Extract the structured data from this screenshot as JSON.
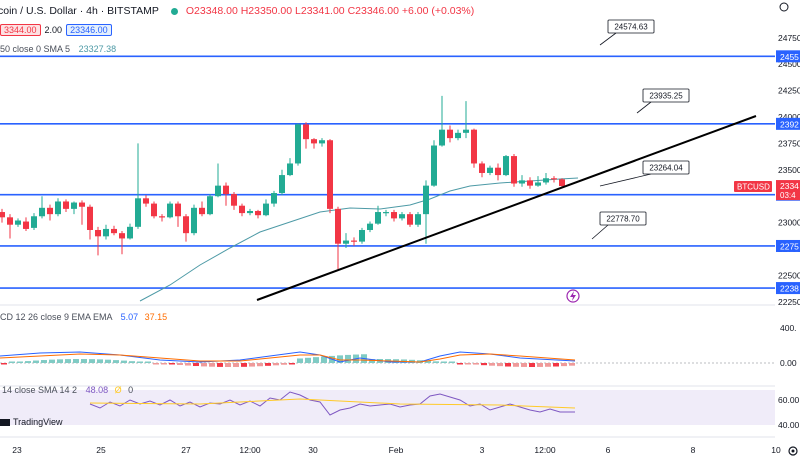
{
  "header": {
    "symbol": "coin / U.S. Dollar · 4h · BITSTAMP",
    "ohlc": "O23348.00 H23350.00 L23341.00 C23346.00 +6.00 (+0.03%)",
    "sell_price": "3344.00",
    "spread": "2.00",
    "buy_price": "23346.00",
    "sma_label": "50 close 0 SMA 5",
    "sma_value": "23327.38"
  },
  "chart_data": {
    "type": "candlestick",
    "symbol": "BTCUSD",
    "interval": "4h",
    "price_axis_ticks": [
      "24750",
      "24500",
      "24250",
      "24000",
      "23750",
      "23500",
      "23250",
      "23000",
      "22750",
      "22500",
      "22250"
    ],
    "time_axis_ticks": [
      "23",
      "25",
      "27",
      "12:00",
      "30",
      "Feb",
      "3",
      "12:00",
      "6",
      "8",
      "10"
    ],
    "horizontal_levels": [
      {
        "label": "24574.63",
        "axis": "2455"
      },
      {
        "label": "23935.25",
        "axis": "2392"
      },
      {
        "label": "23264.04",
        "axis": "2324"
      },
      {
        "label": "22778.70",
        "axis": "2275"
      },
      {
        "label": "2238",
        "axis": "2238"
      }
    ],
    "current_price_tag": {
      "symbol": "BTCUSD",
      "price": "2334",
      "countdown": "03:4"
    },
    "macd": {
      "label": "CD 12 26 close 9 EMA EMA",
      "values": [
        "5.07",
        "37.15"
      ],
      "axis": [
        "400.",
        "0.00"
      ]
    },
    "rsi": {
      "label": "14 close SMA 14 2",
      "values": [
        "48.08",
        "Ø",
        "0"
      ],
      "axis": [
        "60.00",
        "40.00"
      ]
    }
  },
  "footer": {
    "brand": "TradingView"
  },
  "colors": {
    "up": "#22ab94",
    "down": "#f23645",
    "level": "#2962ff",
    "trend": "#000000",
    "sma": "#4d9aa6"
  }
}
